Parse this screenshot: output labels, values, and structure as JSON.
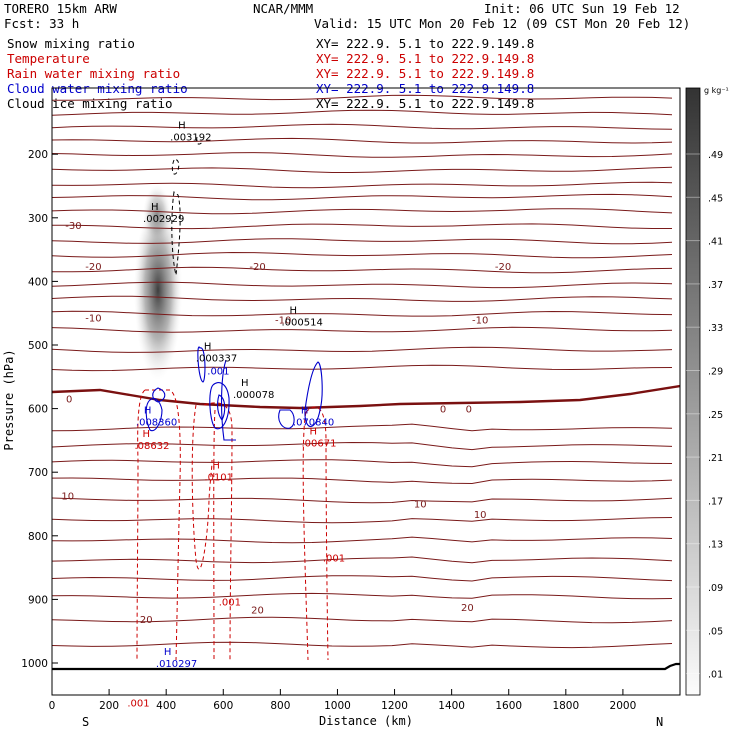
{
  "header": {
    "model": "TORERO  15km ARW",
    "center": "NCAR/MMM",
    "init": "Init: 06 UTC Sun 19 Feb 12",
    "fcst": "Fcst:    33 h",
    "valid": "Valid: 15 UTC Mon 20 Feb 12 (09 CST Mon 20 Feb 12)"
  },
  "legend": {
    "entries": [
      {
        "label": "Snow mixing ratio",
        "xy": "XY= 222.9.  5.1 to 222.9.149.8",
        "color": "#000000"
      },
      {
        "label": "Temperature",
        "xy": "XY= 222.9.  5.1 to 222.9.149.8",
        "color": "#cc0000"
      },
      {
        "label": "Rain water mixing ratio",
        "xy": "XY= 222.9.  5.1 to 222.9.149.8",
        "color": "#cc0000"
      },
      {
        "label": "Cloud water mixing ratio",
        "xy": "XY= 222.9.  5.1 to 222.9.149.8",
        "color": "#0000cc"
      },
      {
        "label": "Cloud ice mixing ratio",
        "xy": "XY= 222.9.  5.1 to 222.9.149.8",
        "color": "#000000"
      }
    ]
  },
  "colorbar": {
    "unit": "g kg⁻¹",
    "labels": [
      ".49",
      ".45",
      ".41",
      ".37",
      ".33",
      ".29",
      ".25",
      ".21",
      ".17",
      ".13",
      ".09",
      ".05",
      ".01"
    ]
  },
  "colors": {
    "temp": "#7a1a1a",
    "freezing": "#7a1010",
    "rain": "#cc0000",
    "cloudwater": "#0000cc",
    "ice": "#000000"
  },
  "chart_data": {
    "type": "cross-section",
    "xlabel": "Distance (km)",
    "ylabel": "Pressure (hPa)",
    "xlim": [
      0,
      2200
    ],
    "ylim": [
      1050,
      100
    ],
    "xticks": [
      0,
      200,
      400,
      600,
      800,
      1000,
      1200,
      1400,
      1600,
      1800,
      2000
    ],
    "yticks": [
      200,
      300,
      400,
      500,
      600,
      700,
      800,
      900,
      1000
    ],
    "end_labels": {
      "left": "S",
      "right": "N"
    },
    "isotherm_labels": [
      {
        "text": "-30",
        "x": 75,
        "p": 311
      },
      {
        "text": "-20",
        "x": 145,
        "p": 376
      },
      {
        "text": "-20",
        "x": 720,
        "p": 376
      },
      {
        "text": "-20",
        "x": 1580,
        "p": 376
      },
      {
        "text": "-10",
        "x": 145,
        "p": 457
      },
      {
        "text": "-10",
        "x": 810,
        "p": 460
      },
      {
        "text": "-10",
        "x": 1500,
        "p": 460
      },
      {
        "text": "0",
        "x": 60,
        "p": 584
      },
      {
        "text": "0",
        "x": 1370,
        "p": 600
      },
      {
        "text": "0",
        "x": 1460,
        "p": 600
      },
      {
        "text": "10",
        "x": 55,
        "p": 737
      },
      {
        "text": "10",
        "x": 1290,
        "p": 749
      },
      {
        "text": "10",
        "x": 1500,
        "p": 766
      },
      {
        "text": "20",
        "x": 330,
        "p": 931
      },
      {
        "text": "20",
        "x": 720,
        "p": 916
      },
      {
        "text": "20",
        "x": 1455,
        "p": 912
      }
    ],
    "maxima": [
      {
        "field": "snow",
        "x": 470,
        "p": 172,
        "value": ".003192"
      },
      {
        "field": "snow",
        "x": 375,
        "p": 300,
        "value": ".002929"
      },
      {
        "field": "ice",
        "x": 860,
        "p": 463,
        "value": ".000514"
      },
      {
        "field": "ice",
        "x": 560,
        "p": 520,
        "value": ".000337"
      },
      {
        "field": "ice",
        "x": 690,
        "p": 577,
        "value": ".000078"
      },
      {
        "field": "cloud",
        "x": 600,
        "p": 540,
        "value": ".001"
      },
      {
        "field": "cloud",
        "x": 350,
        "p": 620,
        "value": ".008360"
      },
      {
        "field": "cloud",
        "x": 900,
        "p": 620,
        "value": ".070840"
      },
      {
        "field": "cloud",
        "x": 420,
        "p": 1000,
        "value": ".010297"
      },
      {
        "field": "rain",
        "x": 345,
        "p": 657,
        "value": ".08632"
      },
      {
        "field": "rain",
        "x": 930,
        "p": 653,
        "value": ".00671"
      },
      {
        "field": "rain",
        "x": 590,
        "p": 707,
        "value": ".0101"
      },
      {
        "field": "rain",
        "x": 1005,
        "p": 834,
        "value": ".001"
      },
      {
        "field": "rain",
        "x": 640,
        "p": 903,
        "value": ".001"
      },
      {
        "field": "rain",
        "x": 320,
        "p": 1062,
        "value": ".001"
      }
    ]
  }
}
